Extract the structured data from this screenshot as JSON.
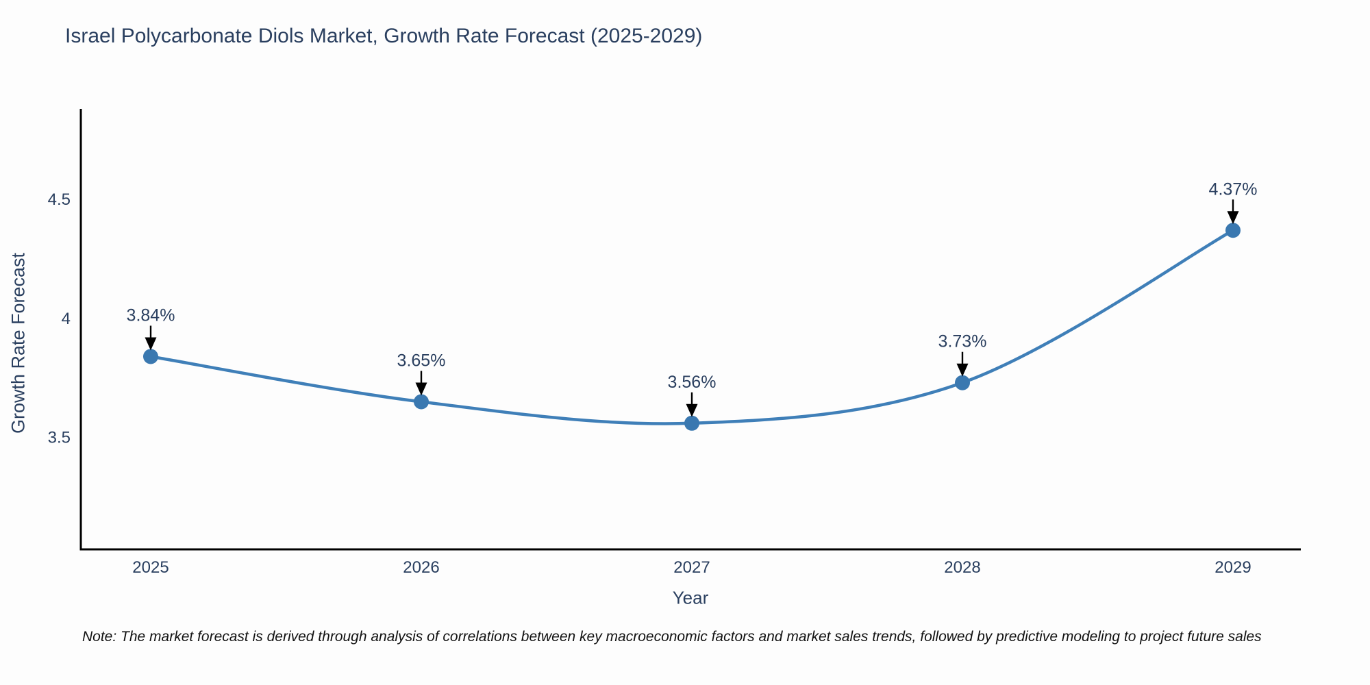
{
  "title": "Israel Polycarbonate Diols Market, Growth Rate Forecast (2025-2029)",
  "note": "Note: The market forecast is derived through analysis of correlations between key macroeconomic factors and market sales trends, followed by predictive modeling to project future sales",
  "chart_data": {
    "type": "line",
    "title": "Israel Polycarbonate Diols Market, Growth Rate Forecast (2025-2029)",
    "xlabel": "Year",
    "ylabel": "Growth Rate Forecast",
    "categories": [
      "2025",
      "2026",
      "2027",
      "2028",
      "2029"
    ],
    "series": [
      {
        "name": "Growth Rate Forecast",
        "values": [
          3.84,
          3.65,
          3.56,
          3.73,
          4.37
        ]
      }
    ],
    "point_labels": [
      "3.84%",
      "3.65%",
      "3.56%",
      "3.73%",
      "4.37%"
    ],
    "ytick_labels": [
      "3.5",
      "4",
      "4.5"
    ],
    "ytick_values": [
      3.5,
      4.0,
      4.5
    ],
    "ylim": [
      3.03,
      4.88
    ],
    "grid": false,
    "legend": "none",
    "line_shape": "spline",
    "annotation_arrows": true
  },
  "colors": {
    "line": "#3f7fb8",
    "marker": "#3a78b0",
    "axis": "#000000",
    "text": "#2a3f5f",
    "annotation_arrow": "#000000",
    "note_text": "#111111",
    "background": "#fdfdfd"
  }
}
